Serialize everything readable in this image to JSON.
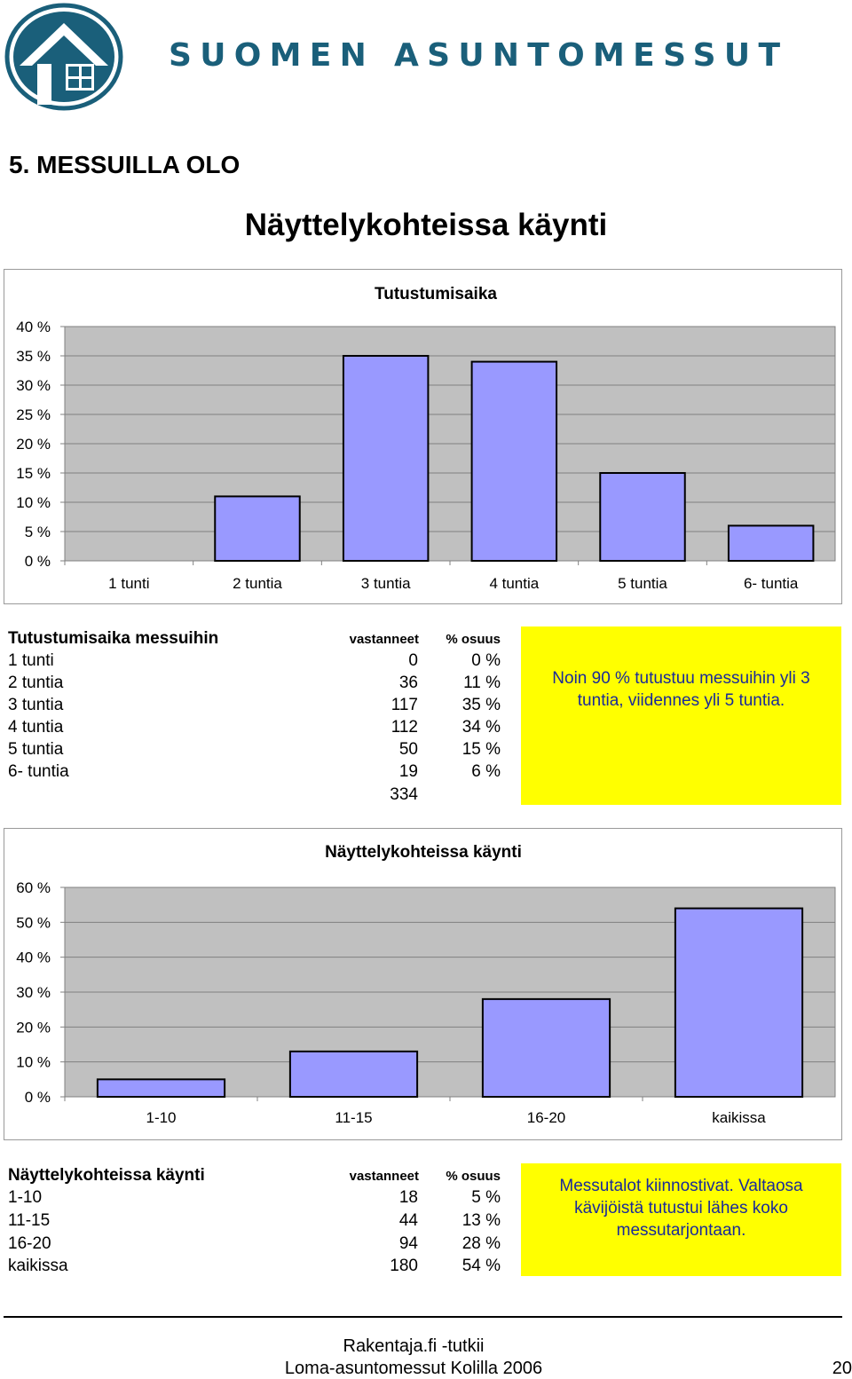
{
  "header": {
    "brand": "SUOMEN ASUNTOMESSUT",
    "logo_icon": "house-logo-icon"
  },
  "section_title": "5. MESSUILLA OLO",
  "page_heading": "Näyttelykohteissa käynti",
  "chart_data": [
    {
      "type": "bar",
      "title": "Tutustumisaika",
      "categories": [
        "1 tunti",
        "2 tuntia",
        "3 tuntia",
        "4 tuntia",
        "5 tuntia",
        "6- tuntia"
      ],
      "values": [
        0,
        11,
        35,
        34,
        15,
        6
      ],
      "yticks": [
        "0 %",
        "5 %",
        "10 %",
        "15 %",
        "20 %",
        "25 %",
        "30 %",
        "35 %",
        "40 %"
      ],
      "ylim": [
        0,
        40
      ],
      "grid": true,
      "bar_color": "#9999ff",
      "plot_bg": "#c0c0c0"
    },
    {
      "type": "bar",
      "title": "Näyttelykohteissa käynti",
      "categories": [
        "1-10",
        "11-15",
        "16-20",
        "kaikissa"
      ],
      "values": [
        5,
        13,
        28,
        54
      ],
      "yticks": [
        "0 %",
        "10 %",
        "20 %",
        "30 %",
        "40 %",
        "50 %",
        "60 %"
      ],
      "ylim": [
        0,
        60
      ],
      "grid": true,
      "bar_color": "#9999ff",
      "plot_bg": "#c0c0c0"
    }
  ],
  "table1": {
    "title": "Tutustumisaika messuihin",
    "col_respondents": "vastanneet",
    "col_share": "% osuus",
    "rows": [
      {
        "label": "1 tunti",
        "count": "0",
        "share": "0 %"
      },
      {
        "label": "2 tuntia",
        "count": "36",
        "share": "11 %"
      },
      {
        "label": "3 tuntia",
        "count": "117",
        "share": "35 %"
      },
      {
        "label": "4 tuntia",
        "count": "112",
        "share": "34 %"
      },
      {
        "label": "5 tuntia",
        "count": "50",
        "share": "15 %"
      },
      {
        "label": "6- tuntia",
        "count": "19",
        "share": "6 %"
      }
    ],
    "total": "334",
    "note": "Noin 90 % tutustuu messuihin yli 3 tuntia, viidennes yli 5 tuntia."
  },
  "table2": {
    "title": "Näyttelykohteissa käynti",
    "col_respondents": "vastanneet",
    "col_share": "% osuus",
    "rows": [
      {
        "label": "1-10",
        "count": "18",
        "share": "5 %"
      },
      {
        "label": "11-15",
        "count": "44",
        "share": "13 %"
      },
      {
        "label": "16-20",
        "count": "94",
        "share": "28 %"
      },
      {
        "label": "kaikissa",
        "count": "180",
        "share": "54 %"
      }
    ],
    "note": "Messutalot kiinnostivat. Valtaosa kävijöistä tutustui lähes koko messutarjontaan."
  },
  "footer": {
    "line1": "Rakentaja.fi -tutkii",
    "line2": "Loma-asuntomessut Kolilla 2006",
    "page_number": "20"
  }
}
